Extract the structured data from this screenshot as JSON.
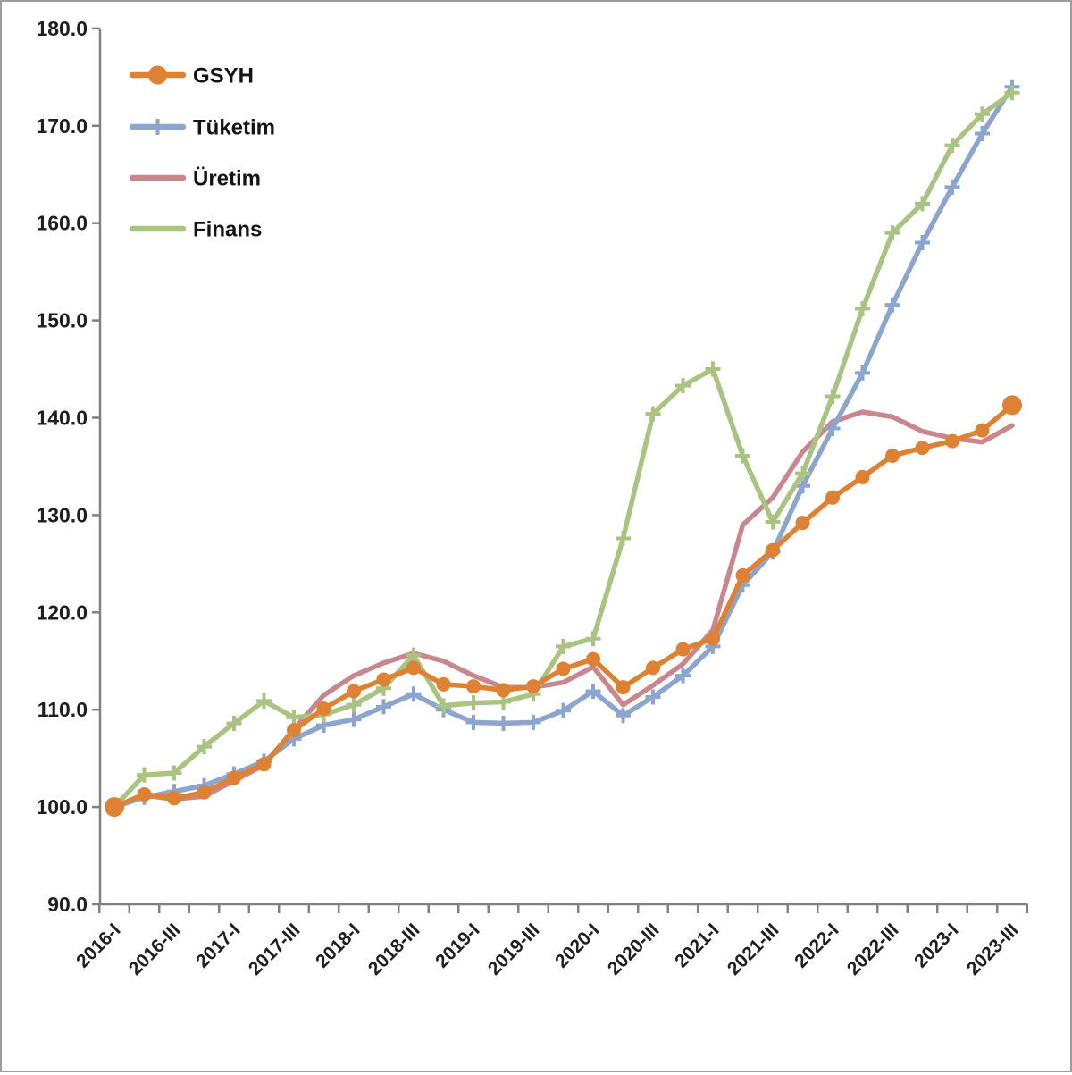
{
  "chart_data": {
    "type": "line",
    "title": "",
    "xlabel": "",
    "ylabel": "",
    "grid": false,
    "legend_position": "top-left",
    "ylim": [
      90,
      180
    ],
    "ytick_step": 10,
    "ytick_labels": [
      "90.0",
      "100.0",
      "110.0",
      "120.0",
      "130.0",
      "140.0",
      "150.0",
      "160.0",
      "170.0",
      "180.0"
    ],
    "x_axis_labeled_ticks": [
      "2016-I",
      "2016-III",
      "2017-I",
      "2017-III",
      "2018-I",
      "2018-III",
      "2019-I",
      "2019-III",
      "2020-I",
      "2020-III",
      "2021-I",
      "2021-III",
      "2022-I",
      "2022-III",
      "2023-I",
      "2023-III"
    ],
    "categories": [
      "2016-I",
      "2016-II",
      "2016-III",
      "2016-IV",
      "2017-I",
      "2017-II",
      "2017-III",
      "2017-IV",
      "2018-I",
      "2018-II",
      "2018-III",
      "2018-IV",
      "2019-I",
      "2019-II",
      "2019-III",
      "2019-IV",
      "2020-I",
      "2020-II",
      "2020-III",
      "2020-IV",
      "2021-I",
      "2021-II",
      "2021-III",
      "2021-IV",
      "2022-I",
      "2022-II",
      "2022-III",
      "2022-IV",
      "2023-I",
      "2023-II",
      "2023-III"
    ],
    "series": [
      {
        "name": "GSYH",
        "color": "#DE8133",
        "marker": "circle",
        "values": [
          100.0,
          101.3,
          100.9,
          101.5,
          103.0,
          104.4,
          107.9,
          110.1,
          111.9,
          113.1,
          114.3,
          112.6,
          112.4,
          112.0,
          112.4,
          114.2,
          115.2,
          112.3,
          114.3,
          116.2,
          117.3,
          123.8,
          126.4,
          129.2,
          131.8,
          133.9,
          136.1,
          136.9,
          137.6,
          138.7,
          141.3
        ]
      },
      {
        "name": "Tüketim",
        "color": "#8CA5CE",
        "marker": "plus",
        "values": [
          100.0,
          101.0,
          101.6,
          102.2,
          103.4,
          104.7,
          107.0,
          108.4,
          109.0,
          110.3,
          111.6,
          110.0,
          108.7,
          108.6,
          108.7,
          109.9,
          111.9,
          109.4,
          111.3,
          113.5,
          116.5,
          122.8,
          126.2,
          133.0,
          138.9,
          144.6,
          151.6,
          158.0,
          163.7,
          169.2,
          174.0
        ]
      },
      {
        "name": "Üretim",
        "color": "#C9868C",
        "marker": "none",
        "values": [
          100.0,
          101.2,
          100.8,
          101.1,
          102.7,
          104.3,
          108.0,
          111.5,
          113.5,
          114.8,
          115.8,
          115.0,
          113.5,
          112.3,
          112.3,
          112.8,
          114.4,
          110.5,
          112.5,
          114.7,
          118.2,
          129.0,
          131.8,
          136.5,
          139.6,
          140.6,
          140.1,
          138.6,
          137.9,
          137.5,
          139.2
        ]
      },
      {
        "name": "Finans",
        "color": "#A9C381",
        "marker": "plus",
        "values": [
          100.0,
          103.3,
          103.5,
          106.2,
          108.6,
          110.9,
          109.2,
          109.5,
          110.5,
          112.2,
          115.6,
          110.4,
          110.7,
          110.8,
          111.6,
          116.5,
          117.3,
          127.6,
          140.4,
          143.3,
          145.0,
          136.1,
          129.3,
          134.3,
          142.2,
          151.2,
          159.0,
          162.0,
          168.0,
          171.2,
          173.4
        ]
      }
    ],
    "colors": {
      "axis": "#808080",
      "tick": "#808080",
      "label": "#1f1f1f",
      "background": "#ffffff",
      "border": "#9d9d9d"
    }
  }
}
